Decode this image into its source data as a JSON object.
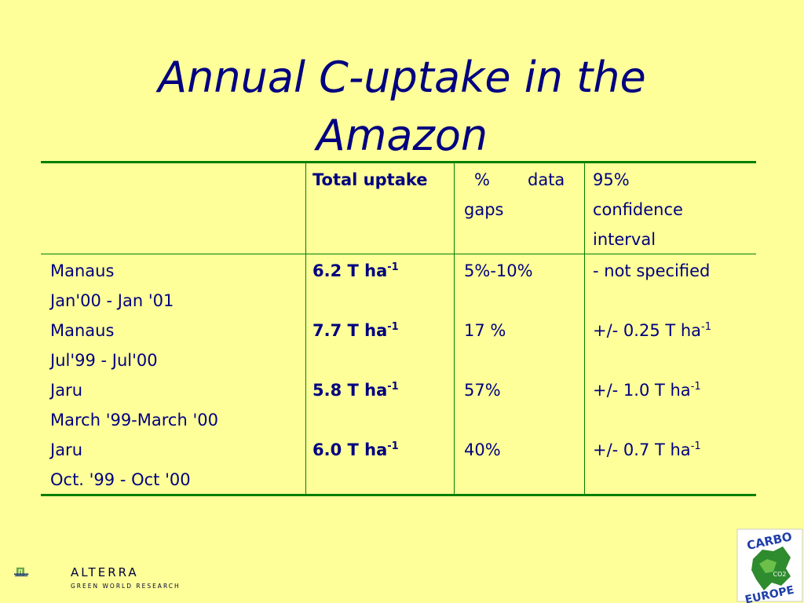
{
  "title": "Annual C-uptake in the Amazon",
  "table": {
    "headers": {
      "total": "Total uptake",
      "gaps_line1": "%",
      "gaps_line1b": "data",
      "gaps_line2": "gaps",
      "ci_line1": "95%",
      "ci_line2": "confidence",
      "ci_line3": "interval"
    },
    "rows": [
      {
        "site": "Manaus",
        "period": "Jan'00 - Jan '01",
        "uptake": "6.2 T ha",
        "gaps": "5%-10%",
        "ci": "- not specified",
        "ci_has_unit": false
      },
      {
        "site": "Manaus",
        "period": "Jul'99 - Jul'00",
        "uptake": "7.7 T ha",
        "gaps": "17 %",
        "ci": "+/- 0.25 T ha",
        "ci_has_unit": true
      },
      {
        "site": "Jaru",
        "period": "March '99-March '00",
        "uptake": "5.8 T ha",
        "gaps": "57%",
        "ci": "+/- 1.0 T ha",
        "ci_has_unit": true
      },
      {
        "site": "Jaru",
        "period": "Oct. '99 - Oct '00",
        "uptake": "6.0 T ha",
        "gaps": "40%",
        "ci": "+/- 0.7 T ha",
        "ci_has_unit": true
      }
    ],
    "unit_exponent": "-1"
  },
  "logos": {
    "alterra_name": "ALTERRA",
    "alterra_sub": "GREEN WORLD RESEARCH",
    "carbo_top": "CARBO",
    "carbo_bottom": "EUROPE",
    "carbo_mark": "CO2"
  },
  "colors": {
    "background": "#ffff99",
    "text": "#000080",
    "rules": "#008000"
  }
}
